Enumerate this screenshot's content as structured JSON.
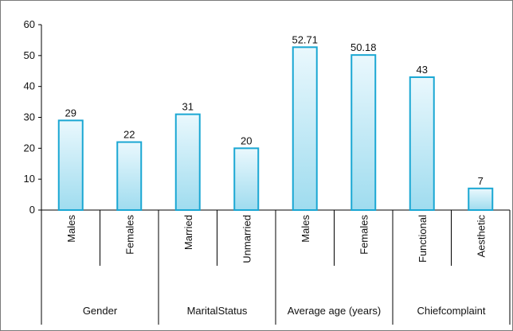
{
  "chart_data": {
    "type": "bar",
    "title": "",
    "xlabel": "",
    "ylabel": "",
    "ylim": [
      0,
      60
    ],
    "yticks": [
      0,
      10,
      20,
      30,
      40,
      50,
      60
    ],
    "grid": false,
    "legend": "none",
    "categories": [
      "Males",
      "Females",
      "Married",
      "Unmarried",
      "Males",
      "Females",
      "Functional",
      "Aesthetic"
    ],
    "values": [
      29,
      22,
      31,
      20,
      52.71,
      50.18,
      43,
      7
    ],
    "value_labels": [
      "29",
      "22",
      "31",
      "20",
      "52.71",
      "50.18",
      "43",
      "7"
    ],
    "groups": [
      {
        "label": "Gender",
        "categories": [
          0,
          1
        ]
      },
      {
        "label": "MaritalStatus",
        "categories": [
          2,
          3
        ]
      },
      {
        "label": "Average age (years)",
        "categories": [
          4,
          5
        ]
      },
      {
        "label": "Chiefcomplaint",
        "categories": [
          6,
          7
        ]
      }
    ],
    "colors": {
      "bar_fill_top": "#eaf8fd",
      "bar_fill_bottom": "#9fdcef",
      "bar_stroke": "#1aa7d3",
      "axis": "#000000"
    }
  }
}
